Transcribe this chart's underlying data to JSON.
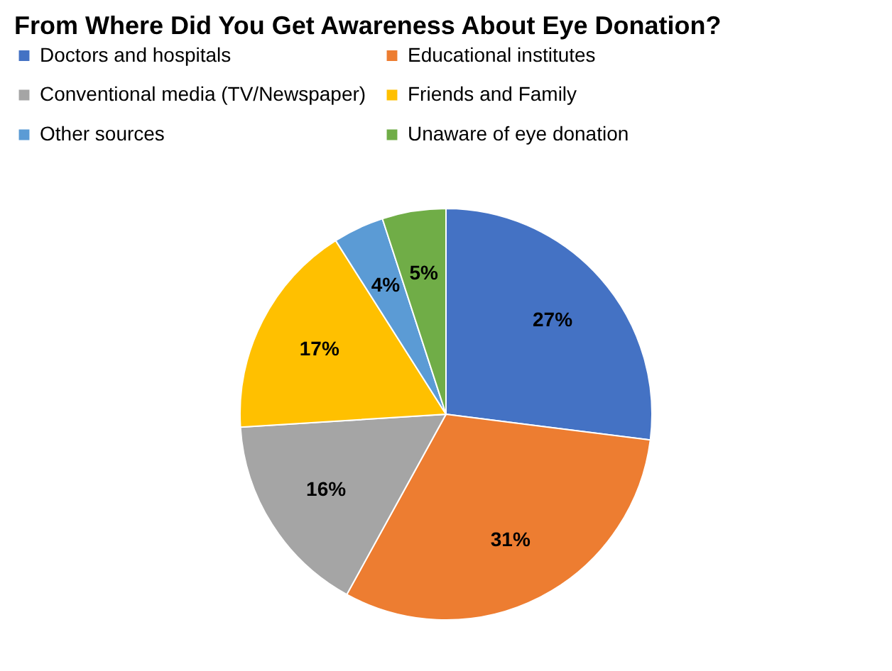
{
  "chart_data": {
    "type": "pie",
    "title": "From Where Did You Get Awareness About Eye Donation?",
    "categories": [
      "Doctors and hospitals",
      "Educational institutes",
      "Conventional media (TV/Newspaper)",
      "Friends and Family",
      "Other sources",
      "Unaware of eye donation"
    ],
    "values": [
      27,
      31,
      16,
      17,
      4,
      5
    ],
    "value_labels": [
      "27%",
      "31%",
      "16%",
      "17%",
      "4%",
      "5%"
    ],
    "colors": [
      "#4472c4",
      "#ed7d31",
      "#a5a5a5",
      "#ffc000",
      "#5b9bd5",
      "#70ad47"
    ],
    "legend": "top"
  }
}
